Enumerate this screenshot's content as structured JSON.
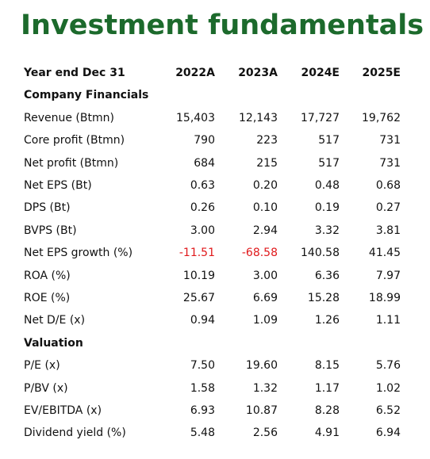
{
  "title": "Investment fundamentals",
  "table": {
    "header": [
      "Year end Dec 31",
      "2022A",
      "2023A",
      "2024E",
      "2025E"
    ],
    "sections": [
      {
        "title": "Company Financials",
        "rows": [
          [
            "Revenue (Btmn)",
            "15,403",
            "12,143",
            "17,727",
            "19,762"
          ],
          [
            "Core profit (Btmn)",
            "790",
            "223",
            "517",
            "731"
          ],
          [
            "Net profit (Btmn)",
            "684",
            "215",
            "517",
            "731"
          ],
          [
            "Net EPS (Bt)",
            "0.63",
            "0.20",
            "0.48",
            "0.68"
          ],
          [
            "DPS (Bt)",
            "0.26",
            "0.10",
            "0.19",
            "0.27"
          ],
          [
            "BVPS (Bt)",
            "3.00",
            "2.94",
            "3.32",
            "3.81"
          ],
          [
            "Net EPS growth (%)",
            "-11.51",
            "-68.58",
            "140.58",
            "41.45"
          ],
          [
            "ROA (%)",
            "10.19",
            "3.00",
            "6.36",
            "7.97"
          ],
          [
            "ROE (%)",
            "25.67",
            "6.69",
            "15.28",
            "18.99"
          ],
          [
            "Net D/E (x)",
            "0.94",
            "1.09",
            "1.26",
            "1.11"
          ]
        ]
      },
      {
        "title": "Valuation",
        "rows": [
          [
            "P/E (x)",
            "7.50",
            "19.60",
            "8.15",
            "5.76"
          ],
          [
            "P/BV (x)",
            "1.58",
            "1.32",
            "1.17",
            "1.02"
          ],
          [
            "EV/EBITDA (x)",
            "6.93",
            "10.87",
            "8.28",
            "6.52"
          ],
          [
            "Dividend yield (%)",
            "5.48",
            "2.56",
            "4.91",
            "6.94"
          ]
        ]
      }
    ]
  }
}
